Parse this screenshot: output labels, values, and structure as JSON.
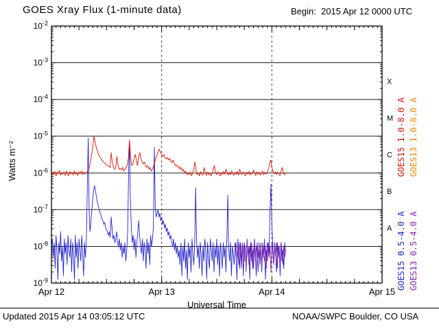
{
  "header": {
    "title": "GOES Xray Flux (1-minute data)",
    "begin": "Begin:  2015 Apr 12 0000 UTC"
  },
  "footer": {
    "updated": "Updated 2015 Apr 14 03:05:12 UTC",
    "source": "NOAA/SWPC Boulder, CO USA"
  },
  "axes": {
    "y_label": "Watts m⁻²",
    "x_label": "Universal Time"
  },
  "colors": {
    "goes15_long": "#dd1100",
    "goes13_long": "#ee8800",
    "goes15_short": "#2222cc",
    "goes13_short": "#8822aa",
    "axis": "#000000",
    "background": "#ffffff"
  },
  "legend": {
    "items": [
      {
        "label": "GOES15 1.0-8.0 A",
        "color": "#dd1100"
      },
      {
        "label": "GOES13 1.0-8.0 A",
        "color": "#ee8800"
      },
      {
        "label": "GOES15 0.5-4.0 A",
        "color": "#2222cc"
      },
      {
        "label": "GOES13 0.5-4.0 A",
        "color": "#8822aa"
      }
    ]
  },
  "flare_classes": [
    {
      "label": "X",
      "log_center": -3.5
    },
    {
      "label": "M",
      "log_center": -4.5
    },
    {
      "label": "C",
      "log_center": -5.5
    },
    {
      "label": "B",
      "log_center": -6.5
    },
    {
      "label": "A",
      "log_center": -7.5
    }
  ],
  "chart_data": {
    "type": "line",
    "title": "GOES Xray Flux (1-minute data)",
    "xlabel": "Universal Time",
    "ylabel": "Watts m⁻²",
    "x_unit": "hours since 2015 Apr 12 0000 UTC",
    "x_range": [
      0,
      72
    ],
    "y_log_range": [
      -2,
      -9
    ],
    "grid": {
      "h_exponents": [
        -3,
        -4,
        -5,
        -6,
        -7,
        -8
      ],
      "v_dashed_t": [
        24,
        48
      ]
    },
    "x_tick_labels": [
      {
        "t": 0,
        "label": "Apr 12"
      },
      {
        "t": 24,
        "label": "Apr 13"
      },
      {
        "t": 48,
        "label": "Apr 14"
      },
      {
        "t": 72,
        "label": "Apr 15"
      }
    ],
    "y_tick_exponents": [
      -2,
      -3,
      -4,
      -5,
      -6,
      -7,
      -8,
      -9
    ],
    "series": [
      {
        "name": "GOES15 0.5-4.0 A",
        "color": "#2222cc",
        "t0": 0,
        "dt": 0.2,
        "log10_flux": [
          -8.0,
          -7.8,
          -8.3,
          -7.9,
          -8.6,
          -7.7,
          -8.1,
          -8.9,
          -7.9,
          -8.2,
          -7.6,
          -8.4,
          -8.0,
          -8.8,
          -7.8,
          -8.2,
          -7.9,
          -8.5,
          -7.7,
          -8.1,
          -8.3,
          -7.8,
          -8.7,
          -7.9,
          -8.2,
          -8.9,
          -7.7,
          -8.3,
          -7.9,
          -8.6,
          -7.8,
          -8.1,
          -8.4,
          -7.7,
          -8.2,
          -8.8,
          -7.9,
          -8.3,
          -7.8,
          -6.5,
          -5.05,
          -7.0,
          -7.6,
          -7.3,
          -7.0,
          -6.7,
          -6.45,
          -6.35,
          -6.5,
          -6.65,
          -6.8,
          -6.9,
          -7.0,
          -7.1,
          -7.15,
          -7.25,
          -7.3,
          -7.4,
          -7.35,
          -7.5,
          -7.55,
          -7.6,
          -7.7,
          -7.6,
          -7.75,
          -7.2,
          -7.5,
          -7.8,
          -7.7,
          -7.9,
          -7.8,
          -7.6,
          -7.9,
          -8.0,
          -7.8,
          -8.1,
          -7.9,
          -8.3,
          -8.0,
          -8.2,
          -7.9,
          -8.4,
          -8.1,
          -7.6,
          -6.0,
          -5.2,
          -6.8,
          -7.5,
          -7.9,
          -7.7,
          -8.1,
          -7.8,
          -8.3,
          -7.9,
          -7.6,
          -7.3,
          -7.7,
          -8.0,
          -8.2,
          -7.8,
          -8.4,
          -7.9,
          -8.1,
          -8.6,
          -7.8,
          -8.2,
          -7.9,
          -8.5,
          -7.7,
          -8.0,
          -7.8,
          -7.5,
          -5.3,
          -6.9,
          -7.2,
          -7.1,
          -7.0,
          -7.2,
          -7.1,
          -7.3,
          -7.2,
          -7.4,
          -7.3,
          -7.5,
          -7.4,
          -7.6,
          -7.5,
          -7.7,
          -7.6,
          -7.8,
          -7.7,
          -7.9,
          -8.0,
          -7.8,
          -8.1,
          -7.9,
          -8.2,
          -8.0,
          -8.3,
          -8.1,
          -8.5,
          -7.9,
          -8.8,
          -8.0,
          -8.4,
          -7.8,
          -8.6,
          -8.1,
          -8.9,
          -7.9,
          -8.3,
          -8.0,
          -8.7,
          -7.8,
          -8.2,
          -8.5,
          -7.9,
          -6.4,
          -7.8,
          -8.3,
          -8.0,
          -8.6,
          -7.9,
          -8.2,
          -8.8,
          -8.0,
          -8.4,
          -7.8,
          -8.1,
          -8.9,
          -7.9,
          -8.3,
          -8.6,
          -7.8,
          -8.1,
          -8.4,
          -7.9,
          -8.7,
          -8.0,
          -8.3,
          -7.8,
          -8.5,
          -8.0,
          -8.8,
          -7.9,
          -8.2,
          -8.6,
          -7.9,
          -8.3,
          -8.0,
          -8.7,
          -7.8,
          -6.6,
          -8.1,
          -8.4,
          -7.9,
          -8.8,
          -8.0,
          -8.2,
          -8.5,
          -7.9,
          -8.3,
          -8.9,
          -7.8,
          -8.1,
          -8.6,
          -7.9,
          -8.4,
          -8.0,
          -8.8,
          -7.9,
          -8.2,
          -8.5,
          -7.8,
          -8.3,
          -8.0,
          -8.9,
          -7.9,
          -8.4,
          -8.1,
          -8.6,
          -7.8,
          -8.2,
          -8.8,
          -7.9,
          -8.3,
          -8.0,
          -8.5,
          -7.9,
          -8.7,
          -8.0,
          -8.3,
          -7.8,
          -8.9,
          -8.1,
          -8.4,
          -7.9,
          -8.2,
          -7.0,
          -6.3,
          -7.4,
          -8.0,
          -8.5,
          -7.9,
          -8.2,
          -8.7,
          -7.9,
          -8.3,
          -8.0,
          -8.8,
          -7.9,
          -8.4,
          -8.1,
          -8.6,
          -7.9,
          -8.2
        ]
      },
      {
        "name": "GOES13 0.5-4.0 A",
        "color": "#8822aa",
        "t0": 40,
        "dt": 0.2,
        "log10_flux": [
          -8.1,
          -7.9,
          -8.3,
          -8.0,
          -8.5,
          -7.9,
          -8.2,
          -8.6,
          -7.9,
          -8.1,
          -8.4,
          -8.0,
          -8.7,
          -7.9,
          -8.2,
          -8.5,
          -8.0,
          -8.3,
          -7.9,
          -8.6,
          -8.1,
          -7.9,
          -8.4,
          -8.0,
          -8.2,
          -8.7,
          -7.9,
          -8.3,
          -8.0,
          -8.5,
          -7.9,
          -8.2,
          -8.4,
          -8.0,
          -8.6,
          -7.9,
          -8.1,
          -8.3,
          -8.0,
          -8.7,
          -7.9,
          -8.2,
          -8.5,
          -8.0,
          -8.3,
          -7.9,
          -8.6,
          -8.0,
          -8.2,
          -8.4,
          -7.9,
          -8.1,
          -8.5,
          -8.0,
          -8.3,
          -8.1
        ]
      },
      {
        "name": "GOES15 1.0-8.0 A",
        "color": "#dd1100",
        "t0": 0,
        "dt": 0.25,
        "log10_flux": [
          -6.02,
          -5.98,
          -6.05,
          -5.96,
          -6.08,
          -5.97,
          -6.03,
          -5.93,
          -6.06,
          -6.0,
          -6.04,
          -5.97,
          -6.07,
          -5.95,
          -6.02,
          -6.08,
          -5.96,
          -6.03,
          -5.98,
          -6.06,
          -5.94,
          -6.04,
          -5.99,
          -6.07,
          -5.97,
          -6.02,
          -5.95,
          -6.05,
          -5.98,
          -6.03,
          -6.0,
          -5.97,
          -5.95,
          -5.85,
          -5.7,
          -5.5,
          -5.3,
          -5.0,
          -5.15,
          -5.3,
          -5.4,
          -5.5,
          -5.55,
          -5.6,
          -5.65,
          -5.7,
          -5.72,
          -5.75,
          -5.78,
          -5.8,
          -5.82,
          -5.85,
          -5.45,
          -5.7,
          -5.85,
          -5.9,
          -5.85,
          -5.55,
          -5.8,
          -5.9,
          -5.88,
          -5.92,
          -5.85,
          -5.95,
          -5.9,
          -5.85,
          -5.8,
          -5.6,
          -5.1,
          -5.6,
          -5.8,
          -5.75,
          -5.6,
          -5.5,
          -5.65,
          -5.8,
          -5.55,
          -5.45,
          -5.6,
          -5.7,
          -5.75,
          -5.7,
          -5.8,
          -5.85,
          -5.8,
          -5.9,
          -5.85,
          -5.95,
          -5.9,
          -5.8,
          -5.7,
          -5.6,
          -5.5,
          -5.42,
          -5.35,
          -5.45,
          -5.5,
          -5.55,
          -5.5,
          -5.6,
          -5.62,
          -5.58,
          -5.65,
          -5.6,
          -5.68,
          -5.72,
          -5.65,
          -5.75,
          -5.8,
          -5.78,
          -5.85,
          -5.82,
          -5.9,
          -5.85,
          -5.95,
          -5.9,
          -6.0,
          -5.95,
          -6.05,
          -6.0,
          -6.05,
          -5.98,
          -6.08,
          -6.0,
          -5.9,
          -5.7,
          -5.95,
          -6.05,
          -6.0,
          -6.08,
          -5.97,
          -6.04,
          -6.06,
          -5.85,
          -6.0,
          -6.07,
          -5.98,
          -6.05,
          -6.0,
          -6.08,
          -6.02,
          -5.9,
          -5.8,
          -6.0,
          -6.05,
          -5.97,
          -6.03,
          -6.08,
          -5.99,
          -6.05,
          -5.96,
          -6.04,
          -5.9,
          -6.0,
          -6.06,
          -5.98,
          -6.05,
          -5.95,
          -6.02,
          -6.07,
          -5.98,
          -6.04,
          -5.96,
          -6.06,
          -5.9,
          -6.0,
          -6.05,
          -5.97,
          -6.03,
          -6.08,
          -5.98,
          -6.04,
          -5.96,
          -6.06,
          -5.99,
          -6.03,
          -5.92,
          -6.0,
          -6.07,
          -5.97,
          -6.04,
          -5.98,
          -6.06,
          -6.0,
          -5.95,
          -6.05,
          -5.98,
          -6.03,
          -6.0,
          -5.9,
          -5.75,
          -5.65,
          -5.85,
          -5.95,
          -6.02,
          -5.97,
          -6.05,
          -5.98,
          -6.03,
          -6.07,
          -5.95,
          -5.85,
          -6.0,
          -6.05,
          -6.0
        ]
      }
    ]
  }
}
